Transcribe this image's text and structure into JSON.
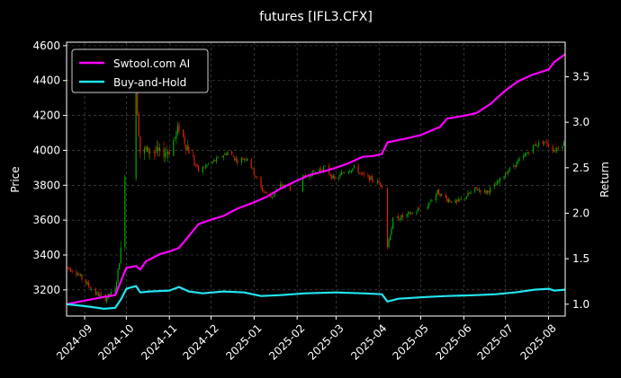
{
  "chart_data": {
    "type": "line",
    "title": "futures [IFL3.CFX]",
    "ylabel_left": "Price",
    "ylabel_right": "Return",
    "ylim_left": [
      3050,
      4620
    ],
    "ylim_right": [
      0.87,
      3.88
    ],
    "xlim": [
      "2024-08-19",
      "2025-08-13"
    ],
    "x_ticks": [
      "2024-09",
      "2024-10",
      "2024-11",
      "2024-12",
      "2025-01",
      "2025-02",
      "2025-03",
      "2025-04",
      "2025-05",
      "2025-06",
      "2025-07",
      "2025-08"
    ],
    "y_ticks_left": [
      3200,
      3400,
      3600,
      3800,
      4000,
      4200,
      4400,
      4600
    ],
    "y_ticks_right": [
      1.0,
      1.5,
      2.0,
      2.5,
      3.0,
      3.5
    ],
    "grid": true,
    "legend_position": "top-left",
    "candle_up_color": "#00aa00",
    "candle_down_color": "#dd2200",
    "price_path": [
      [
        "2024-08-19",
        3330
      ],
      [
        "2024-08-26",
        3300
      ],
      [
        "2024-09-02",
        3240
      ],
      [
        "2024-09-09",
        3180
      ],
      [
        "2024-09-16",
        3150
      ],
      [
        "2024-09-23",
        3200
      ],
      [
        "2024-09-27",
        3420
      ],
      [
        "2024-09-30",
        3880
      ],
      [
        "2024-10-08",
        4350
      ],
      [
        "2024-10-11",
        3990
      ],
      [
        "2024-10-18",
        4000
      ],
      [
        "2024-10-25",
        3980
      ],
      [
        "2024-11-01",
        4000
      ],
      [
        "2024-11-08",
        4130
      ],
      [
        "2024-11-15",
        4000
      ],
      [
        "2024-11-22",
        3880
      ],
      [
        "2024-11-29",
        3920
      ],
      [
        "2024-12-06",
        3950
      ],
      [
        "2024-12-13",
        3990
      ],
      [
        "2024-12-20",
        3940
      ],
      [
        "2024-12-27",
        3960
      ],
      [
        "2025-01-06",
        3780
      ],
      [
        "2025-01-13",
        3730
      ],
      [
        "2025-01-20",
        3800
      ],
      [
        "2025-01-27",
        3780
      ],
      [
        "2025-02-07",
        3850
      ],
      [
        "2025-02-14",
        3880
      ],
      [
        "2025-02-21",
        3900
      ],
      [
        "2025-02-28",
        3830
      ],
      [
        "2025-03-07",
        3880
      ],
      [
        "2025-03-14",
        3900
      ],
      [
        "2025-03-21",
        3850
      ],
      [
        "2025-03-28",
        3830
      ],
      [
        "2025-04-03",
        3800
      ],
      [
        "2025-04-07",
        3450
      ],
      [
        "2025-04-11",
        3600
      ],
      [
        "2025-04-18",
        3620
      ],
      [
        "2025-04-25",
        3640
      ],
      [
        "2025-05-06",
        3690
      ],
      [
        "2025-05-13",
        3760
      ],
      [
        "2025-05-20",
        3720
      ],
      [
        "2025-05-27",
        3700
      ],
      [
        "2025-06-03",
        3740
      ],
      [
        "2025-06-10",
        3780
      ],
      [
        "2025-06-17",
        3760
      ],
      [
        "2025-06-24",
        3800
      ],
      [
        "2025-07-01",
        3870
      ],
      [
        "2025-07-08",
        3920
      ],
      [
        "2025-07-15",
        3970
      ],
      [
        "2025-07-22",
        4030
      ],
      [
        "2025-07-29",
        4050
      ],
      [
        "2025-08-05",
        4000
      ],
      [
        "2025-08-13",
        4050
      ]
    ],
    "series": [
      {
        "name": "Swtool.com AI",
        "axis": "right",
        "color": "#ff00ff",
        "points": [
          [
            "2024-08-19",
            1.0
          ],
          [
            "2024-09-01",
            1.04
          ],
          [
            "2024-09-15",
            1.08
          ],
          [
            "2024-09-23",
            1.1
          ],
          [
            "2024-09-27",
            1.25
          ],
          [
            "2024-10-01",
            1.4
          ],
          [
            "2024-10-08",
            1.42
          ],
          [
            "2024-10-11",
            1.38
          ],
          [
            "2024-10-15",
            1.47
          ],
          [
            "2024-10-25",
            1.55
          ],
          [
            "2024-11-01",
            1.58
          ],
          [
            "2024-11-08",
            1.62
          ],
          [
            "2024-11-15",
            1.75
          ],
          [
            "2024-11-22",
            1.88
          ],
          [
            "2024-12-01",
            1.93
          ],
          [
            "2024-12-10",
            1.97
          ],
          [
            "2024-12-20",
            2.05
          ],
          [
            "2025-01-01",
            2.12
          ],
          [
            "2025-01-10",
            2.18
          ],
          [
            "2025-01-20",
            2.27
          ],
          [
            "2025-02-01",
            2.36
          ],
          [
            "2025-02-10",
            2.42
          ],
          [
            "2025-02-20",
            2.46
          ],
          [
            "2025-03-01",
            2.5
          ],
          [
            "2025-03-10",
            2.55
          ],
          [
            "2025-03-20",
            2.62
          ],
          [
            "2025-03-28",
            2.63
          ],
          [
            "2025-04-03",
            2.65
          ],
          [
            "2025-04-07",
            2.78
          ],
          [
            "2025-04-20",
            2.82
          ],
          [
            "2025-05-01",
            2.86
          ],
          [
            "2025-05-15",
            2.95
          ],
          [
            "2025-05-20",
            3.04
          ],
          [
            "2025-06-01",
            3.07
          ],
          [
            "2025-06-10",
            3.1
          ],
          [
            "2025-06-20",
            3.2
          ],
          [
            "2025-07-01",
            3.35
          ],
          [
            "2025-07-10",
            3.45
          ],
          [
            "2025-07-20",
            3.52
          ],
          [
            "2025-08-01",
            3.58
          ],
          [
            "2025-08-05",
            3.66
          ],
          [
            "2025-08-13",
            3.75
          ]
        ]
      },
      {
        "name": "Buy-and-Hold",
        "axis": "right",
        "color": "#22e5f0",
        "points": [
          [
            "2024-08-19",
            1.0
          ],
          [
            "2024-09-01",
            0.98
          ],
          [
            "2024-09-15",
            0.95
          ],
          [
            "2024-09-23",
            0.96
          ],
          [
            "2024-09-27",
            1.05
          ],
          [
            "2024-10-01",
            1.17
          ],
          [
            "2024-10-08",
            1.2
          ],
          [
            "2024-10-11",
            1.13
          ],
          [
            "2024-10-18",
            1.14
          ],
          [
            "2024-11-01",
            1.15
          ],
          [
            "2024-11-08",
            1.19
          ],
          [
            "2024-11-15",
            1.14
          ],
          [
            "2024-11-25",
            1.12
          ],
          [
            "2024-12-10",
            1.14
          ],
          [
            "2024-12-25",
            1.13
          ],
          [
            "2025-01-06",
            1.09
          ],
          [
            "2025-01-20",
            1.1
          ],
          [
            "2025-02-07",
            1.12
          ],
          [
            "2025-03-01",
            1.13
          ],
          [
            "2025-03-20",
            1.12
          ],
          [
            "2025-04-03",
            1.11
          ],
          [
            "2025-04-07",
            1.03
          ],
          [
            "2025-04-15",
            1.06
          ],
          [
            "2025-05-06",
            1.08
          ],
          [
            "2025-05-20",
            1.09
          ],
          [
            "2025-06-10",
            1.1
          ],
          [
            "2025-06-24",
            1.11
          ],
          [
            "2025-07-08",
            1.13
          ],
          [
            "2025-07-22",
            1.16
          ],
          [
            "2025-08-01",
            1.17
          ],
          [
            "2025-08-05",
            1.15
          ],
          [
            "2025-08-13",
            1.16
          ]
        ]
      }
    ]
  }
}
